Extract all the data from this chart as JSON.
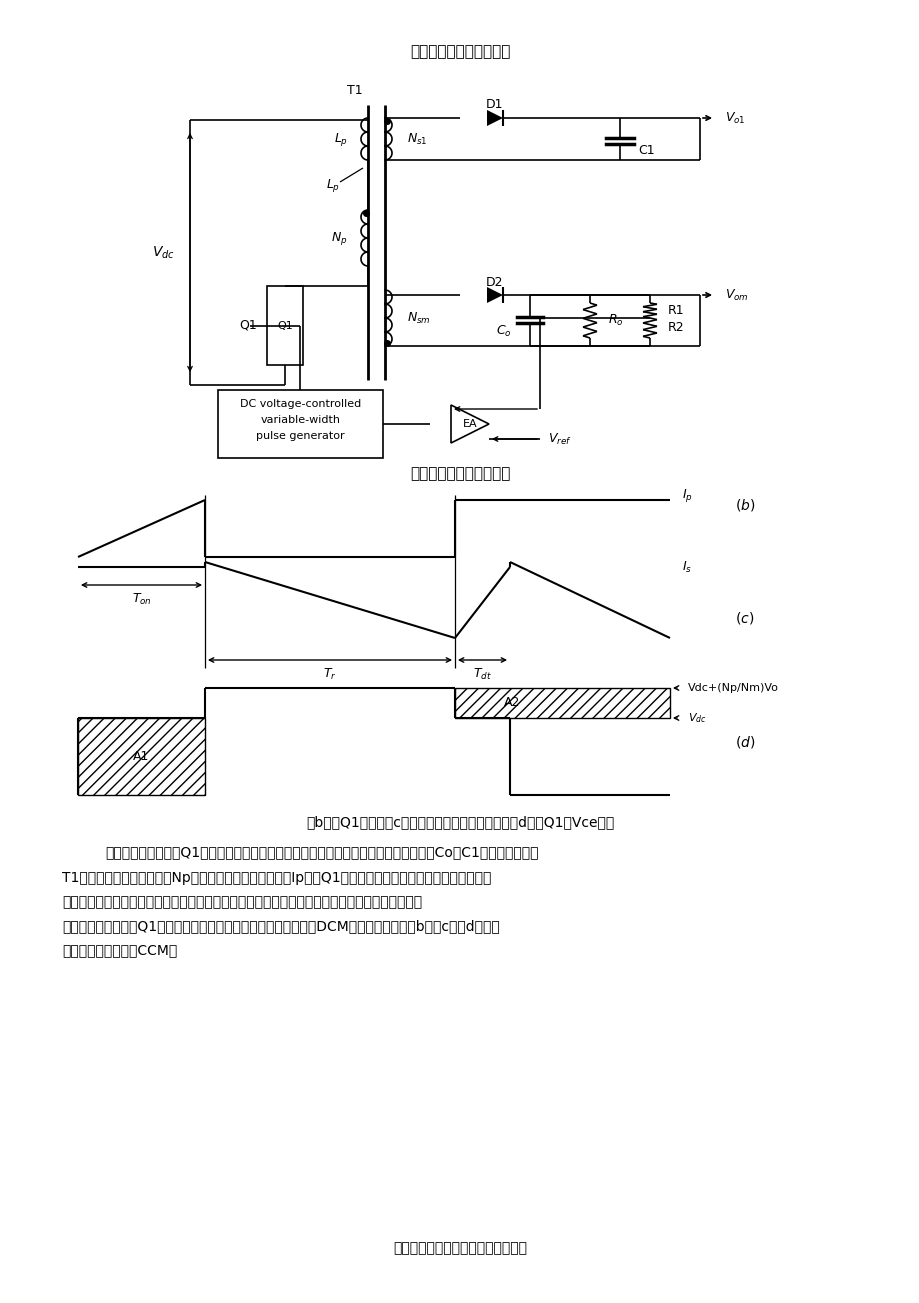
{
  "circuit_title": "单端反激拓扑的基本电路",
  "circuit_title2": "单端反激拓扑的基本电路",
  "caption": "（b）为Q1电流，（c）为次级整流二极管电流，　（d）为Q1的Vce电压",
  "text1_indent": "　工作原理如下：当Q1导通时，所有的次级侧整流二极管都反向截止，　　输出电容（Co、C1）给负载供电。",
  "text2": "T1相当于一个纯电感，流过Np的电流线性上升，达到峰值Ip。当Q1关断时，所有绕组电压反向，次级侧整流",
  "text3": "二极管导通，同时初级侧线圈储存的能量传递到次级，提供负载电流，同时给输出电容充电。若次",
  "text4": "级侧电流在下一周期Q1导通前下降到零，则电路工作于断续模式（DCM），波形如上图（b）（c）（d），反",
  "text5": "之则处于连续模式（CCM）",
  "footer": "专业文档供参考，如有帮助请下载。",
  "bg_color": "#ffffff"
}
